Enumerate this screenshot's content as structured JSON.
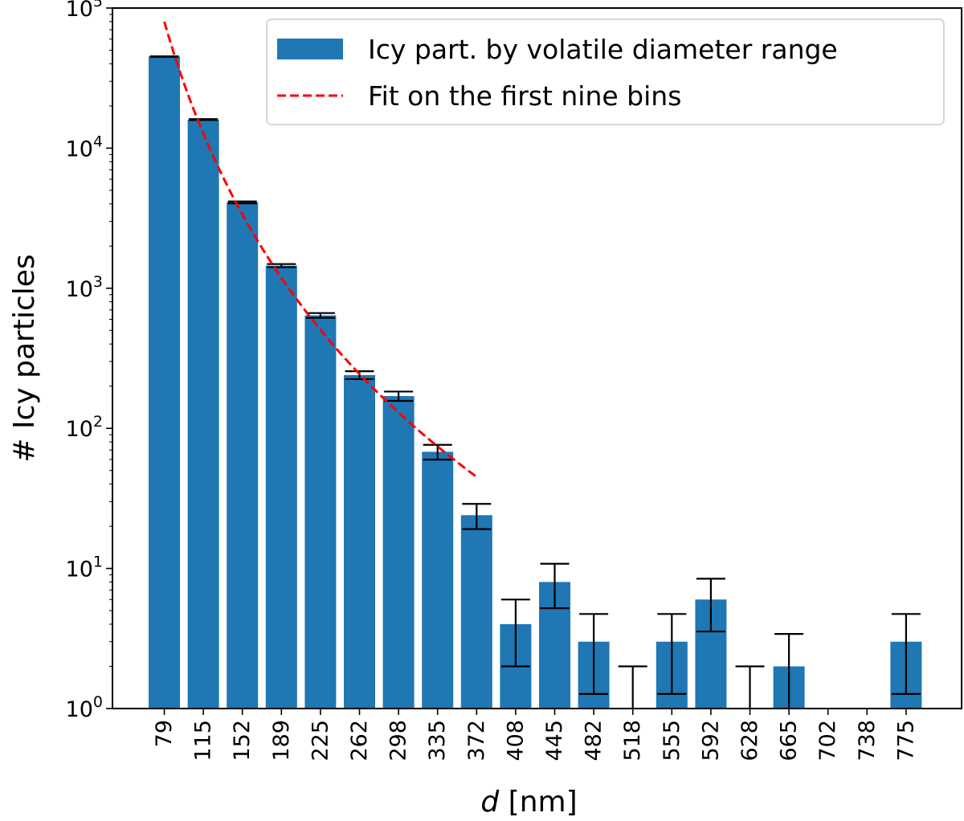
{
  "chart_data": {
    "type": "bar",
    "yscale": "log",
    "ylim": [
      1,
      100000
    ],
    "y_ticks": [
      {
        "value": 1,
        "base": "10",
        "exp": "0"
      },
      {
        "value": 10,
        "base": "10",
        "exp": "1"
      },
      {
        "value": 100,
        "base": "10",
        "exp": "2"
      },
      {
        "value": 1000,
        "base": "10",
        "exp": "3"
      },
      {
        "value": 10000,
        "base": "10",
        "exp": "4"
      },
      {
        "value": 100000,
        "base": "10",
        "exp": "5"
      }
    ],
    "categories": [
      "79",
      "115",
      "152",
      "189",
      "225",
      "262",
      "298",
      "335",
      "372",
      "408",
      "445",
      "482",
      "518",
      "555",
      "592",
      "628",
      "665",
      "702",
      "738",
      "775"
    ],
    "values": [
      45000,
      16000,
      4100,
      1450,
      640,
      240,
      170,
      68,
      24,
      4,
      8,
      3,
      1,
      3,
      6,
      1,
      2,
      0,
      0,
      3
    ],
    "errors": [
      210,
      126,
      64,
      38,
      25,
      15.5,
      13,
      8.2,
      4.9,
      2,
      2.8,
      1.73,
      1,
      1.73,
      2.45,
      1,
      1.41,
      0,
      0,
      1.73
    ],
    "fit": {
      "x_start": "79",
      "x_end": "372",
      "y_start": 80000,
      "y_end": 45
    },
    "xlabel_italic": "d",
    "xlabel_rest": " [nm]",
    "ylabel": "# Icy particles",
    "legend": {
      "placement": "top-right",
      "entries": [
        {
          "label": "Icy part. by volatile diameter range",
          "type": "bar"
        },
        {
          "label": "Fit on the first nine bins",
          "type": "dashed-line"
        }
      ]
    },
    "grid": false,
    "colors": {
      "bar": "#1f77b4",
      "fit": "#ff0000",
      "errorbar": "#000000"
    }
  }
}
